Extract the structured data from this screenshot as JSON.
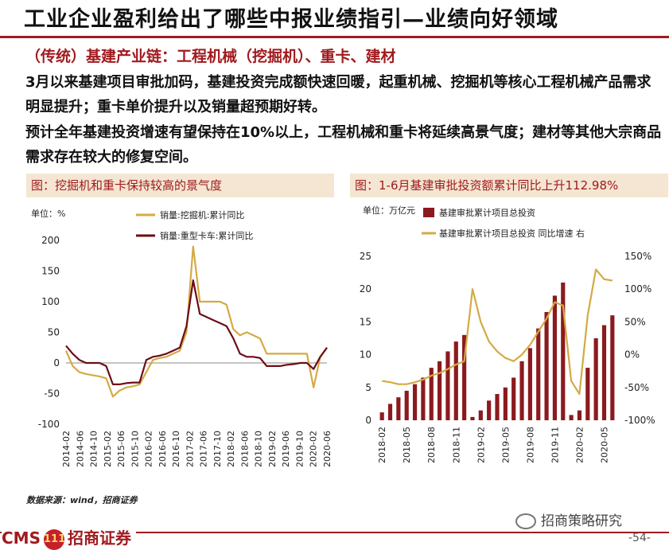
{
  "header": {
    "title": "工业企业盈利给出了哪些中报业绩指引—业绩向好领域",
    "subtitle": "（传统）基建产业链：工程机械（挖掘机）、重卡、建材"
  },
  "body": {
    "para1": "3月以来基建项目审批加码，基建投资完成额快速回暖，起重机械、挖掘机等核心工程机械产品需求明显提升；重卡单价提升以及销量超预期好转。",
    "para2": "预计全年基建投资增速有望保持在10%以上，工程机械和重卡将延续高景气度；建材等其他大宗商品需求存在较大的修复空间。"
  },
  "colors": {
    "accent": "#a01a1e",
    "gold": "#d4aa44",
    "maroon": "#6b0e16",
    "panel_bg": "#f4e6d2"
  },
  "chart_data": [
    {
      "type": "line",
      "title": "图：挖掘机和重卡保持较高的景气度",
      "unit": "单位：%",
      "ylim": [
        -100,
        200
      ],
      "yticks": [
        "200",
        "150",
        "100",
        "50",
        "0",
        "-50",
        "-100"
      ],
      "x_tick_labels": [
        "2014-02",
        "2014-06",
        "2014-10",
        "2015-02",
        "2015-06",
        "2015-10",
        "2016-02",
        "2016-06",
        "2016-10",
        "2017-02",
        "2017-06",
        "2017-10",
        "2018-02",
        "2018-06",
        "2018-10",
        "2019-02",
        "2019-06",
        "2019-10",
        "2020-02",
        "2020-06"
      ],
      "legend_position": "top",
      "series": [
        {
          "name": "销量:挖掘机:累计同比",
          "color": "#d4aa44",
          "values": [
            20,
            -5,
            -15,
            -18,
            -20,
            -22,
            -25,
            -55,
            -45,
            -40,
            -38,
            -35,
            -15,
            5,
            8,
            10,
            15,
            20,
            50,
            190,
            100,
            100,
            100,
            100,
            95,
            55,
            45,
            50,
            45,
            40,
            15,
            15,
            15,
            15,
            15,
            15,
            15,
            -40,
            10,
            25
          ]
        },
        {
          "name": "销量:重型卡车:累计同比",
          "color": "#6b0e16",
          "values": [
            28,
            15,
            5,
            0,
            0,
            0,
            -5,
            -35,
            -35,
            -33,
            -32,
            -32,
            5,
            10,
            12,
            15,
            20,
            25,
            60,
            135,
            80,
            75,
            70,
            65,
            60,
            40,
            15,
            10,
            10,
            8,
            -5,
            -5,
            -5,
            -3,
            -2,
            0,
            0,
            -10,
            10,
            25
          ]
        }
      ]
    },
    {
      "type": "bar+line",
      "title": "图：1-6月基建审批投资额累计同比上升112.98%",
      "unit_left": "单位：万亿元",
      "ylim_left": [
        0,
        25
      ],
      "ylim_right": [
        -100,
        150
      ],
      "yticks_left": [
        "25",
        "20",
        "15",
        "10",
        "5",
        "0"
      ],
      "yticks_right": [
        "150%",
        "100%",
        "50%",
        "0%",
        "-50%",
        "-100%"
      ],
      "x_tick_labels": [
        "2018-02",
        "2018-05",
        "2018-08",
        "2018-11",
        "2019-02",
        "2019-05",
        "2019-08",
        "2019-11",
        "2020-02",
        "2020-05"
      ],
      "categories": [
        "2018-02",
        "2018-03",
        "2018-04",
        "2018-05",
        "2018-06",
        "2018-07",
        "2018-08",
        "2018-09",
        "2018-10",
        "2018-11",
        "2018-12",
        "2019-01",
        "2019-02",
        "2019-03",
        "2019-04",
        "2019-05",
        "2019-06",
        "2019-07",
        "2019-08",
        "2019-09",
        "2019-10",
        "2019-11",
        "2019-12",
        "2020-01",
        "2020-02",
        "2020-03",
        "2020-04",
        "2020-05",
        "2020-06"
      ],
      "legend_position": "top",
      "series": [
        {
          "name": "基建审批累计项目总投资",
          "axis": "left",
          "color": "#8b1a1e",
          "values": [
            1.2,
            2.5,
            3.5,
            4.5,
            5.5,
            6.5,
            8,
            9,
            10.5,
            12,
            13,
            0.5,
            1.5,
            3,
            4,
            5,
            6.5,
            9,
            11,
            14,
            16.5,
            19,
            21,
            0.8,
            1.5,
            8,
            12.5,
            14.5,
            16
          ]
        },
        {
          "name": "基建审批累计项目总投资 同比增速 右",
          "axis": "right",
          "color": "#d4aa44",
          "values": [
            -40,
            -42,
            -45,
            -45,
            -42,
            -38,
            -32,
            -28,
            -22,
            -15,
            -10,
            100,
            50,
            20,
            5,
            -5,
            -10,
            0,
            15,
            35,
            55,
            80,
            75,
            -40,
            -60,
            60,
            130,
            115,
            113
          ]
        }
      ]
    }
  ],
  "footer": {
    "source": "数据来源：wind，招商证券",
    "brand": "CMS",
    "brand_badge": "111",
    "brand_name": "招商证券",
    "wechat": "招商策略研究",
    "page": "-54-"
  }
}
